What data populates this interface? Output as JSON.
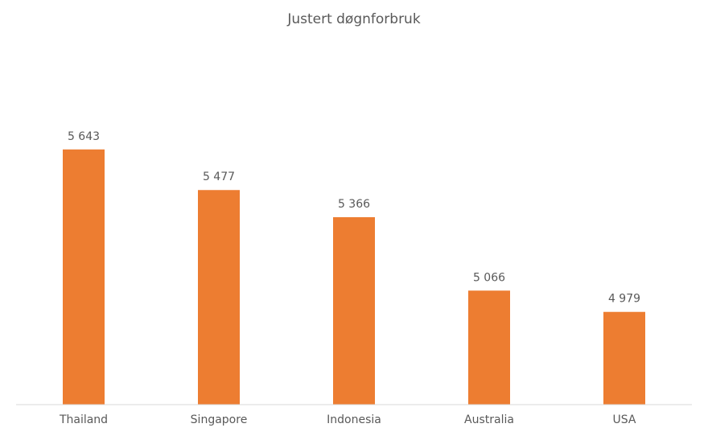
{
  "chart_data": {
    "type": "bar",
    "title": "Justert døgnforbruk",
    "categories": [
      "Thailand",
      "Singapore",
      "Indonesia",
      "Australia",
      "USA"
    ],
    "values": [
      5643,
      5477,
      5366,
      5066,
      4979
    ],
    "value_labels": [
      "5 643",
      "5 477",
      "5 366",
      "5 066",
      "4 979"
    ],
    "color": "#ed7d31",
    "ylim": [
      4600,
      5800
    ]
  }
}
